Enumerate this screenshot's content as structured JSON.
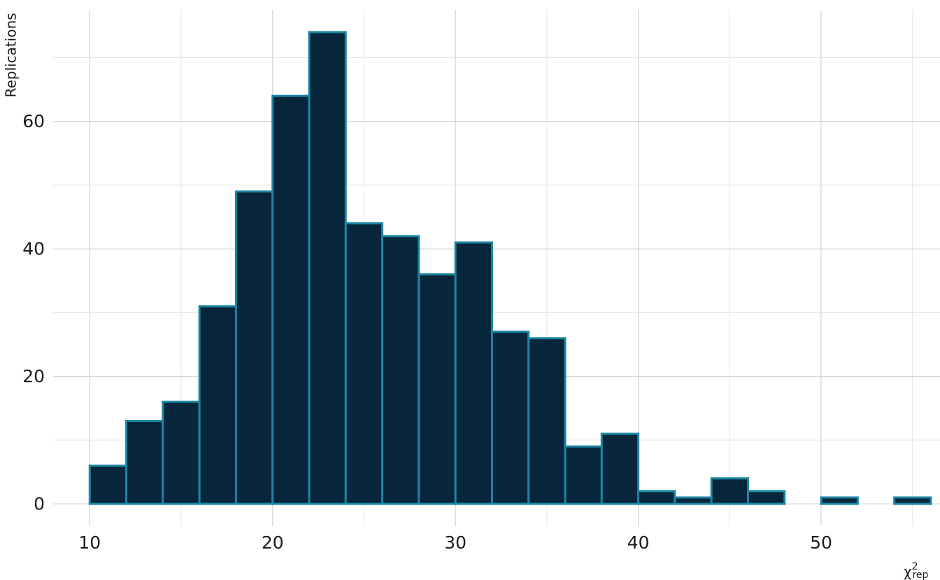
{
  "chart_data": {
    "type": "bar",
    "subtype": "histogram",
    "bin_width": 2,
    "bin_start": 10,
    "values": [
      6,
      13,
      16,
      31,
      49,
      64,
      74,
      44,
      42,
      36,
      41,
      27,
      26,
      9,
      11,
      2,
      1,
      4,
      2,
      0,
      1,
      0,
      1
    ],
    "xlim": [
      8,
      56.5
    ],
    "ylim": [
      -3.5,
      77.5
    ],
    "x_ticks": [
      "10",
      "20",
      "30",
      "40",
      "50"
    ],
    "y_ticks": [
      "0",
      "20",
      "40",
      "60"
    ],
    "ylabel": "Replications",
    "xlabel": {
      "main": "χ",
      "sup": "2",
      "sub": "rep"
    },
    "grid": true,
    "colors": {
      "fill": "#08263b",
      "stroke": "#1b86a3"
    }
  }
}
